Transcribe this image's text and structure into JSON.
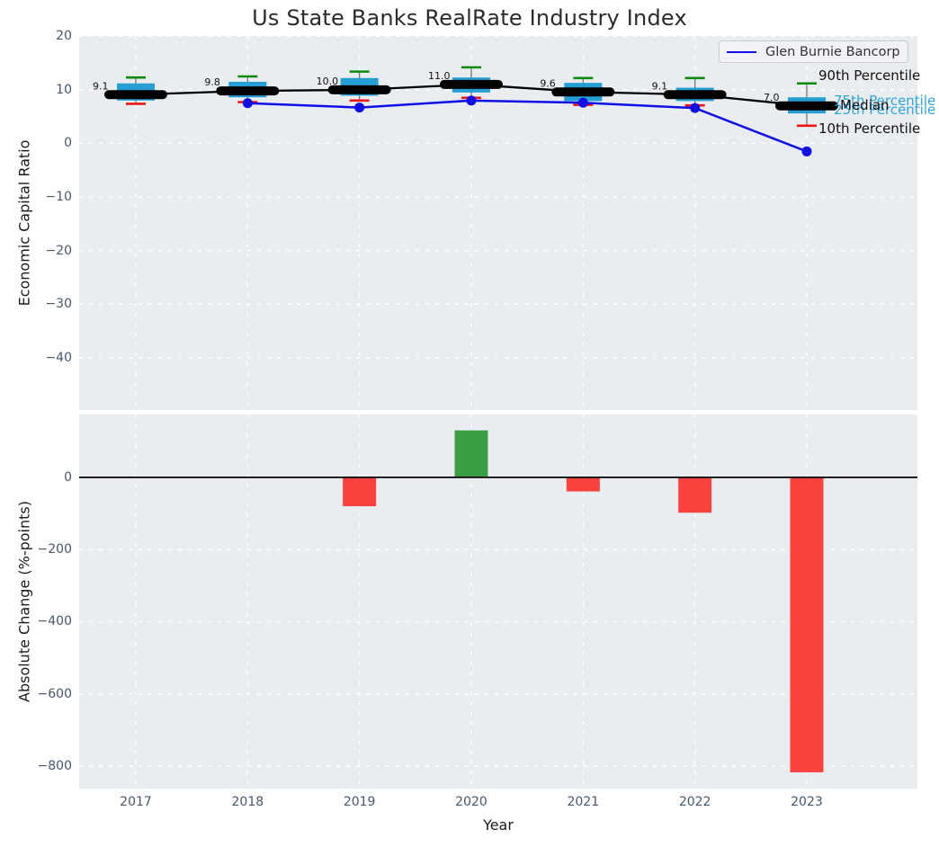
{
  "figure": {
    "title": "Us State Banks RealRate Industry Index",
    "xlabel": "Year",
    "legend": {
      "company_label": "Glen Burnie Bancorp"
    },
    "annotations": {
      "p90": "90th Percentile",
      "p75": "75th Percentile",
      "median": "Median",
      "p25": "25th Percentile",
      "p10": "10th Percentile"
    }
  },
  "colors": {
    "box_fill": "#259fd3",
    "percentile_text": "#2fa7d9",
    "company_line": "#0f0fe6",
    "median_line": "#000000",
    "whisker": "#777777",
    "cap_90": "#0c8b0c",
    "cap_10": "#ee1515",
    "bar_positive": "#3b9e42",
    "bar_negative": "#f9423e",
    "plot_bg": "#e9edef",
    "grid": "#ffffff",
    "tick_label": "#46586e"
  },
  "chart_data": [
    {
      "type": "boxplot-with-line",
      "title": "Us State Banks RealRate Industry Index",
      "ylabel": "Economic Capital Ratio",
      "ylim": [
        -49.75,
        20.05
      ],
      "yticks": [
        20,
        10,
        0,
        -10,
        -20,
        -30,
        -40
      ],
      "grid": true,
      "legend_position": "upper right",
      "categories": [
        2017,
        2018,
        2019,
        2020,
        2021,
        2022,
        2023
      ],
      "boxes": [
        {
          "year": 2017,
          "p10": 7.4,
          "p25": 8.0,
          "median": 9.1,
          "p75": 11.2,
          "p90": 12.3,
          "label": "9.1"
        },
        {
          "year": 2018,
          "p10": 7.7,
          "p25": 8.6,
          "median": 9.8,
          "p75": 11.5,
          "p90": 12.5,
          "label": "9.8"
        },
        {
          "year": 2019,
          "p10": 8.0,
          "p25": 8.9,
          "median": 10.0,
          "p75": 12.2,
          "p90": 13.4,
          "label": "10.0"
        },
        {
          "year": 2020,
          "p10": 8.5,
          "p25": 9.5,
          "median": 11.0,
          "p75": 12.3,
          "p90": 14.2,
          "label": "11.0"
        },
        {
          "year": 2021,
          "p10": 7.2,
          "p25": 7.9,
          "median": 9.6,
          "p75": 11.3,
          "p90": 12.2,
          "label": "9.6"
        },
        {
          "year": 2022,
          "p10": 7.1,
          "p25": 7.9,
          "median": 9.1,
          "p75": 10.4,
          "p90": 12.2,
          "label": "9.1"
        },
        {
          "year": 2023,
          "p10": 3.3,
          "p25": 5.6,
          "median": 7.0,
          "p75": 8.6,
          "p90": 11.2,
          "label": "7.0"
        }
      ],
      "company_series": {
        "name": "Glen Burnie Bancorp",
        "x": [
          2018,
          2019,
          2020,
          2021,
          2022,
          2023
        ],
        "y": [
          7.5,
          6.7,
          8.0,
          7.6,
          6.6,
          -1.5
        ]
      }
    },
    {
      "type": "bar",
      "ylabel": "Absolute Change (%-points)",
      "xlabel": "Year",
      "ylim": [
        -862,
        174
      ],
      "yticks": [
        0,
        -200,
        -400,
        -600,
        -800
      ],
      "grid": true,
      "categories": [
        2017,
        2018,
        2019,
        2020,
        2021,
        2022,
        2023
      ],
      "values": [
        null,
        null,
        -80,
        130,
        -39,
        -98,
        -817
      ]
    }
  ]
}
